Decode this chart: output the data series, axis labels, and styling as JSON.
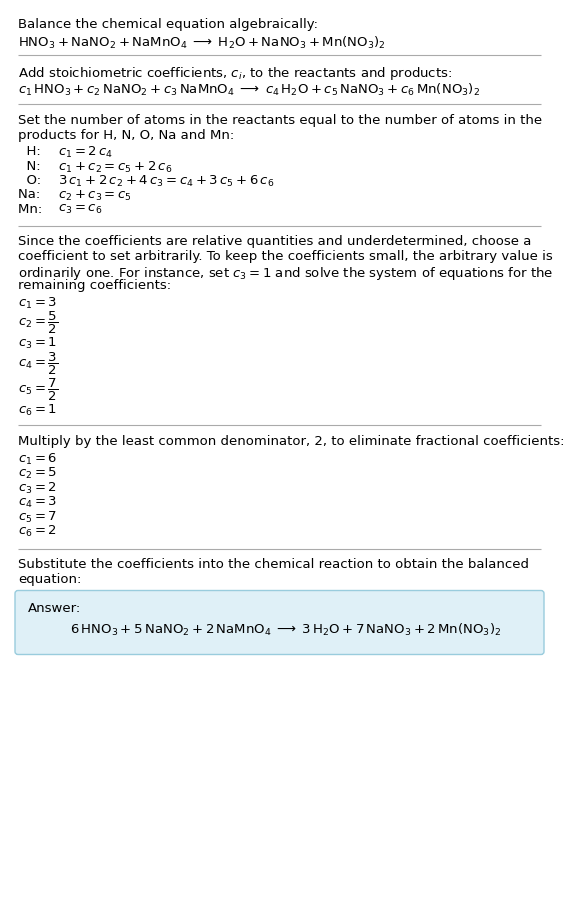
{
  "bg_color": "#ffffff",
  "answer_box_color": "#dff0f7",
  "answer_box_edge": "#99ccdd",
  "line_color": "#aaaaaa",
  "text_color": "#000000",
  "section1_title": "Balance the chemical equation algebraically:",
  "section1_eq": "$\\mathrm{HNO_3 + NaNO_2 + NaMnO_4 \\;\\longrightarrow\\; H_2O + NaNO_3 + Mn(NO_3)_2}$",
  "section2_title": "Add stoichiometric coefficients, $c_i$, to the reactants and products:",
  "section2_eq": "$c_1\\,\\mathrm{HNO_3} + c_2\\,\\mathrm{NaNO_2} + c_3\\,\\mathrm{NaMnO_4} \\;\\longrightarrow\\; c_4\\,\\mathrm{H_2O} + c_5\\,\\mathrm{NaNO_3} + c_6\\,\\mathrm{Mn(NO_3)_2}$",
  "section3_title_line1": "Set the number of atoms in the reactants equal to the number of atoms in the",
  "section3_title_line2": "products for H, N, O, Na and Mn:",
  "section3_rows": [
    [
      "  H:  ",
      "$c_1 = 2\\,c_4$"
    ],
    [
      "  N:  ",
      "$c_1 + c_2 = c_5 + 2\\,c_6$"
    ],
    [
      "  O:  ",
      "$3\\,c_1 + 2\\,c_2 + 4\\,c_3 = c_4 + 3\\,c_5 + 6\\,c_6$"
    ],
    [
      "Na:  ",
      "$c_2 + c_3 = c_5$"
    ],
    [
      "Mn:  ",
      "$c_3 = c_6$"
    ]
  ],
  "section4_title_line1": "Since the coefficients are relative quantities and underdetermined, choose a",
  "section4_title_line2": "coefficient to set arbitrarily. To keep the coefficients small, the arbitrary value is",
  "section4_title_line3": "ordinarily one. For instance, set $c_3 = 1$ and solve the system of equations for the",
  "section4_title_line4": "remaining coefficients:",
  "section4_lines": [
    "$c_1 = 3$",
    "$c_2 = \\dfrac{5}{2}$",
    "$c_3 = 1$",
    "$c_4 = \\dfrac{3}{2}$",
    "$c_5 = \\dfrac{7}{2}$",
    "$c_6 = 1$"
  ],
  "section5_title": "Multiply by the least common denominator, 2, to eliminate fractional coefficients:",
  "section5_lines": [
    "$c_1 = 6$",
    "$c_2 = 5$",
    "$c_3 = 2$",
    "$c_4 = 3$",
    "$c_5 = 7$",
    "$c_6 = 2$"
  ],
  "section6_title_line1": "Substitute the coefficients into the chemical reaction to obtain the balanced",
  "section6_title_line2": "equation:",
  "answer_label": "Answer:",
  "answer_eq": "$6\\,\\mathrm{HNO_3} + 5\\,\\mathrm{NaNO_2} + 2\\,\\mathrm{NaMnO_4} \\;\\longrightarrow\\; 3\\,\\mathrm{H_2O} + 7\\,\\mathrm{NaNO_3} + 2\\,\\mathrm{Mn(NO_3)_2}$"
}
